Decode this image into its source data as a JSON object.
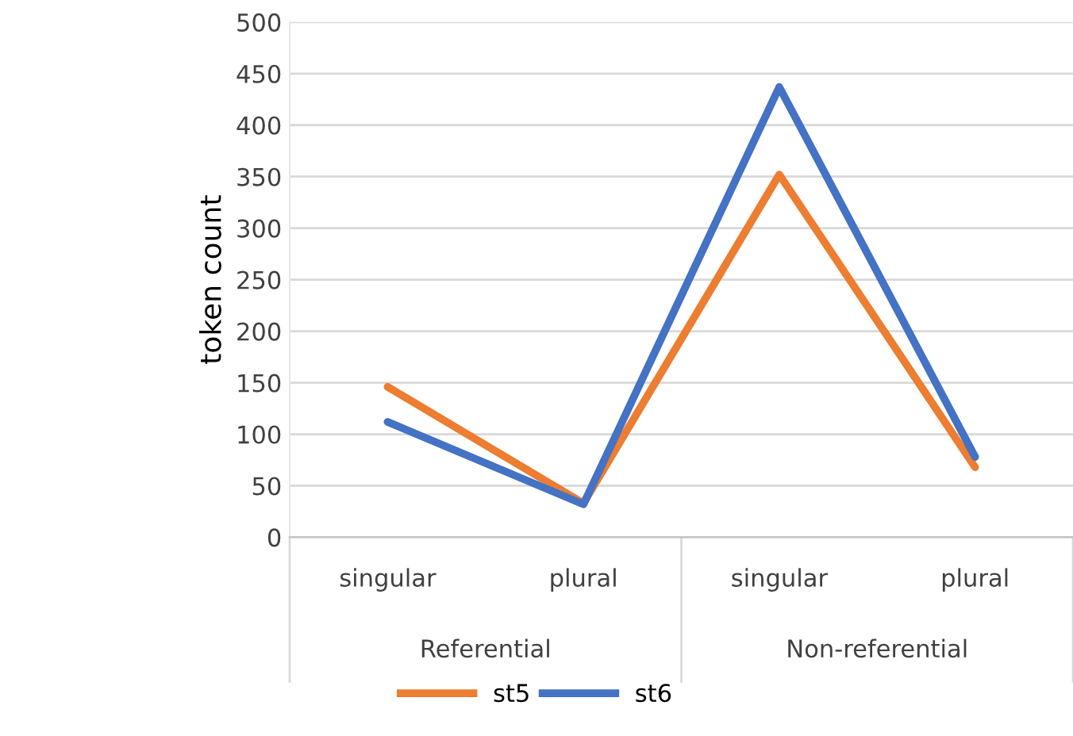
{
  "chart_data": {
    "type": "line",
    "ylabel": "token count",
    "categories": [
      "singular",
      "plural",
      "singular",
      "plural"
    ],
    "series": [
      {
        "name": "st5",
        "color": "#ed7d31",
        "values": [
          146,
          33,
          352,
          68
        ]
      },
      {
        "name": "st6",
        "color": "#4472c4",
        "values": [
          112,
          32,
          437,
          78
        ]
      }
    ],
    "annotations": [
      "Referential",
      "Non-referential"
    ],
    "ylim": [
      0,
      500
    ],
    "yticks": [
      0,
      50,
      100,
      150,
      200,
      250,
      300,
      350,
      400,
      450,
      500
    ],
    "grid": "y",
    "legend": "bottom",
    "marker": "none",
    "line_style": "solid"
  }
}
